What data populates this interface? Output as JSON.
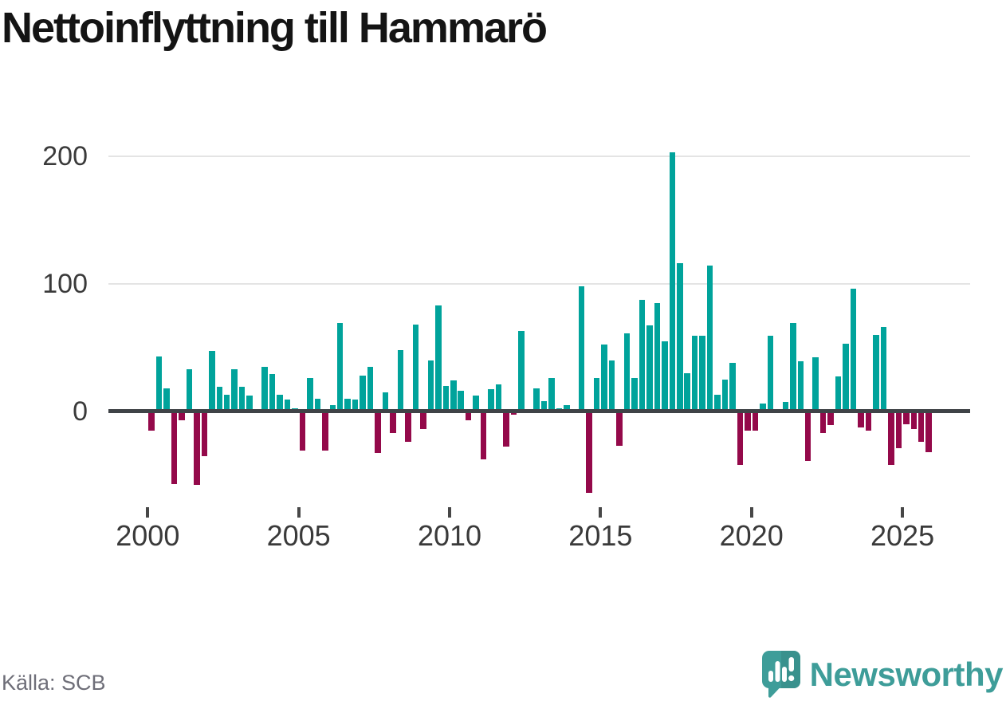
{
  "title": "Nettoinflyttning till Hammarö",
  "footer": {
    "source": "Källa: SCB"
  },
  "brand": {
    "name": "Newsworthy",
    "icon": "newsworthy-speech-bubble-chart-icon"
  },
  "colors": {
    "positive": "#00a39b",
    "negative": "#94094a",
    "axis": "#3f4347",
    "grid": "#e4e4e4",
    "tick": "#474747",
    "axis_label": "#3a3a3a",
    "title_text": "#141414",
    "source_text": "#6e6e78",
    "brand_teal": "#3e9d99",
    "brand_teal_dark": "#39918d",
    "background": "#ffffff"
  },
  "chart_data": {
    "type": "bar",
    "title": "Nettoinflyttning till Hammarö",
    "frequency": "quarterly",
    "start_period": "2000Q1",
    "end_period": "2025Q4",
    "x_tick_labels": [
      "2000",
      "2005",
      "2010",
      "2015",
      "2020",
      "2025"
    ],
    "yticks": [
      0,
      100,
      200
    ],
    "ylim": [
      -75,
      220
    ],
    "grid": true,
    "legend": "none",
    "series": [
      {
        "name": "Nettoinflyttning",
        "values": [
          -15,
          43,
          18,
          -57,
          -7,
          33,
          -58,
          -35,
          47,
          19,
          13,
          33,
          19,
          12,
          0,
          35,
          29,
          13,
          9,
          2,
          -31,
          26,
          10,
          -31,
          5,
          69,
          10,
          9,
          28,
          35,
          -33,
          15,
          -17,
          48,
          -24,
          68,
          -14,
          40,
          83,
          20,
          24,
          16,
          -7,
          12,
          -38,
          17,
          21,
          -28,
          -3,
          63,
          0,
          18,
          8,
          26,
          2,
          5,
          0,
          98,
          -64,
          26,
          52,
          40,
          -27,
          61,
          26,
          87,
          67,
          85,
          55,
          203,
          116,
          30,
          59,
          59,
          114,
          13,
          25,
          38,
          -42,
          -15,
          -15,
          6,
          59,
          0,
          7,
          69,
          39,
          -39,
          42,
          -17,
          -11,
          27,
          53,
          96,
          -13,
          -15,
          60,
          66,
          -42,
          -29,
          -10,
          -14,
          -24,
          -32
        ]
      }
    ]
  }
}
